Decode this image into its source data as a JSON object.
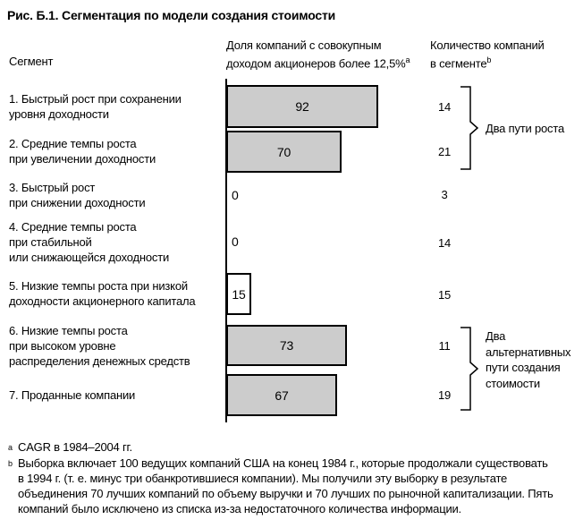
{
  "figure": {
    "title": "Рис. Б.1. Сегментация по модели создания стоимости"
  },
  "columns": {
    "segment": "Сегмент",
    "share": {
      "line1": "Доля компаний с совокупным",
      "line2": "доходом акционеров более 12,5%",
      "marker": "a"
    },
    "count": {
      "line1": "Количество компаний",
      "line2": "в сегменте",
      "marker": "b"
    }
  },
  "chart_data": {
    "type": "bar",
    "title": "Сегментация по модели создания стоимости",
    "orientation": "horizontal",
    "value_label": "Доля компаний с совокупным доходом акционеров более 12,5%",
    "unit": "%",
    "xlim": [
      0,
      100
    ],
    "grid": false,
    "bar_fill": "#cccccc",
    "bar_border": "#000000",
    "rows": [
      {
        "label": "1. Быстрый рост при сохранении\nуровня доходности",
        "share_pct": 92,
        "count": 14,
        "fill": "#cccccc"
      },
      {
        "label": "2. Средние темпы роста\nпри увеличении доходности",
        "share_pct": 70,
        "count": 21,
        "fill": "#cccccc"
      },
      {
        "label": "3. Быстрый рост\nпри снижении доходности",
        "share_pct": 0,
        "count": 3,
        "fill": null
      },
      {
        "label": "4. Средние темпы роста\nпри стабильной\nили снижающейся доходности",
        "share_pct": 0,
        "count": 14,
        "fill": null
      },
      {
        "label": "5. Низкие темпы роста при низкой\nдоходности акционерного капитала",
        "share_pct": 15,
        "count": 15,
        "fill": "#ffffff"
      },
      {
        "label": "6. Низкие темпы роста\nпри высоком уровне\nраспределения денежных средств",
        "share_pct": 73,
        "count": 11,
        "fill": "#cccccc"
      },
      {
        "label": "7. Проданные компании",
        "share_pct": 67,
        "count": 19,
        "fill": "#cccccc"
      }
    ],
    "annotations": [
      {
        "label": "Два пути роста",
        "rows": [
          1,
          2
        ]
      },
      {
        "label": "Два\nальтернативных\nпути создания\nстоимости",
        "rows": [
          6,
          7
        ]
      }
    ]
  },
  "footnotes": [
    {
      "marker": "a",
      "text": "CAGR в 1984–2004 гг."
    },
    {
      "marker": "b",
      "text": "Выборка включает 100 ведущих компаний США на конец 1984 г., которые продолжали существовать\nв 1994 г. (т. е. минус три обанкротившиеся компании). Мы получили эту выборку в результате\nобъединения 70 лучших компаний по объему выручки и 70 лучших по рыночной капитализации. Пять\nкомпаний было исключено из списка из-за недостаточного количества информации."
    }
  ]
}
